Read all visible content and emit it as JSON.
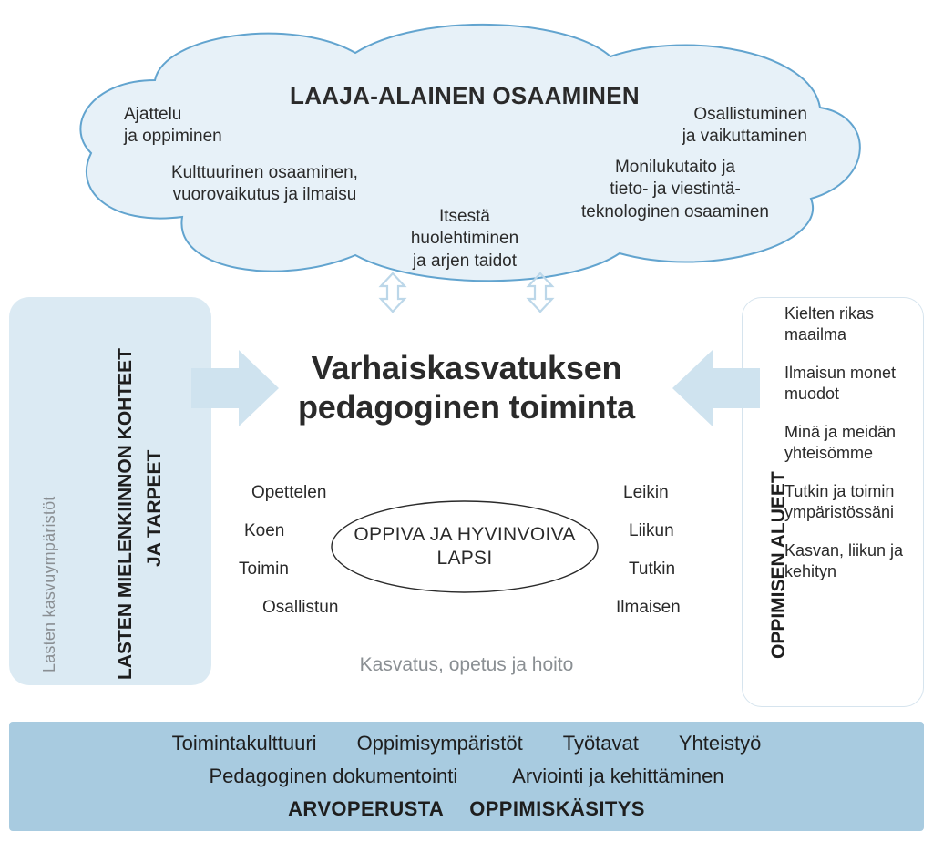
{
  "colors": {
    "cloud_fill": "#e7f1f8",
    "cloud_stroke": "#62a4cf",
    "panel_left_bg": "#dbeaf3",
    "panel_right_border": "#d6e4ee",
    "bottom_bg": "#a8cbe0",
    "arrow_fill": "#cfe3ef",
    "arrow_icon_stroke": "#bcd7e9",
    "text_primary": "#2a2a2a",
    "text_muted": "#8a8f93"
  },
  "cloud": {
    "title": "LAAJA-ALAINEN OSAAMINEN",
    "items": {
      "top_left": "Ajattelu\nja oppiminen",
      "top_right": "Osallistuminen\nja vaikuttaminen",
      "mid_left": "Kulttuurinen osaaminen,\nvuorovaikutus ja ilmaisu",
      "mid_right": "Monilukutaito ja\ntieto- ja viestintä-\nteknologinen osaaminen",
      "bottom_center": "Itsestä\nhuolehtiminen\nja arjen taidot"
    }
  },
  "center": {
    "title_l1": "Varhaiskasvatuksen",
    "title_l2": "pedagoginen toiminta",
    "ellipse_l1": "OPPIVA JA HYVINVOIVA",
    "ellipse_l2": "LAPSI",
    "subtitle": "Kasvatus, opetus ja hoito",
    "words_left": [
      "Opettelen",
      "Koen",
      "Toimin",
      "Osallistun"
    ],
    "words_right": [
      "Leikin",
      "Liikun",
      "Tutkin",
      "Ilmaisen"
    ]
  },
  "left_panel": {
    "env_label": "Lasten kasvuympäristöt",
    "main_label": "LASTEN MIELENKIINNON KOHTEET",
    "main_label2": "JA TARPEET"
  },
  "right_panel": {
    "label": "OPPIMISEN ALUEET",
    "items": [
      "Kielten rikas maailma",
      "Ilmaisun monet muodot",
      "Minä ja meidän yhteisömme",
      "Tutkin ja toimin ympäristössäni",
      "Kasvan, liikun ja kehityn"
    ]
  },
  "bottom": {
    "row1": [
      "Toimintakulttuuri",
      "Oppimisympäristöt",
      "Työtavat",
      "Yhteistyö"
    ],
    "row2": [
      "Pedagoginen dokumentointi",
      "Arviointi ja kehittäminen"
    ],
    "row3": [
      "ARVOPERUSTA",
      "OPPIMISKÄSITYS"
    ]
  }
}
